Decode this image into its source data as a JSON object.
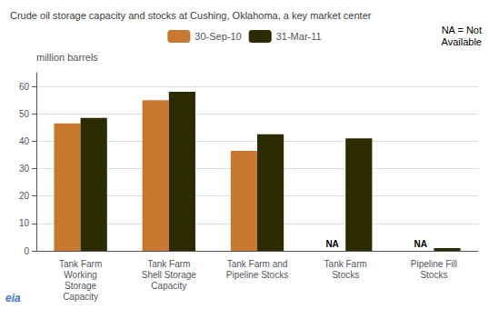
{
  "chart_data": {
    "type": "bar",
    "title": "Crude oil storage capacity and stocks at Cushing, Oklahoma, a key market center",
    "y_label": "million barrels",
    "categories": [
      "Tank Farm\nWorking\nStorage\nCapacity",
      "Tank Farm\nShell Storage\nCapacity",
      "Tank Farm and\nPipeline Stocks",
      "Tank Farm\nStocks",
      "Pipeline Fill\nStocks"
    ],
    "series": [
      {
        "name": "30-Sep-10",
        "color": "#C87830",
        "values": [
          46.5,
          55.0,
          36.5,
          null,
          null
        ]
      },
      {
        "name": "31-Mar-11",
        "color": "#2B2B00",
        "values": [
          48.5,
          58.0,
          42.5,
          41.0,
          1.0
        ]
      }
    ],
    "annotations": [
      {
        "text": "NA",
        "category": "Tank Farm\nStocks",
        "series": "30-Sep-10"
      },
      {
        "text": "NA",
        "category": "Pipeline Fill\nStocks",
        "series": "30-Sep-10"
      }
    ],
    "note": "NA = Not\nAvailable",
    "source": "eia",
    "ylim": [
      0,
      65
    ],
    "yticks": [
      0,
      10,
      20,
      30,
      40,
      50,
      60
    ],
    "grid": true,
    "legend": "top"
  }
}
